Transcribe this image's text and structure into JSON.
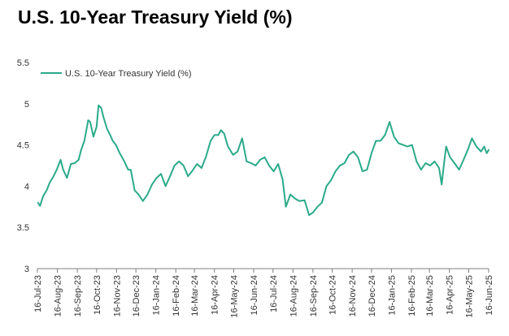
{
  "title": "U.S. 10-Year Treasury Yield (%)",
  "colors": {
    "series": "#2aaa8a",
    "axis": "#7f7f7f",
    "text": "#333333"
  },
  "chart_data": {
    "type": "line",
    "title": "U.S. 10-Year Treasury Yield (%)",
    "xlabel": "",
    "ylabel": "",
    "ylim": [
      3,
      5.5
    ],
    "yticks": [
      3,
      3.5,
      4,
      4.5,
      5,
      5.5
    ],
    "ytick_labels": [
      "3",
      "3.5",
      "4",
      "4.5",
      "5",
      "5.5"
    ],
    "xlim": [
      "2023-07-16",
      "2025-06-16"
    ],
    "xticks": [
      "2023-07-16",
      "2023-08-16",
      "2023-09-16",
      "2023-10-16",
      "2023-11-16",
      "2023-12-16",
      "2024-01-16",
      "2024-02-16",
      "2024-03-16",
      "2024-04-16",
      "2024-05-16",
      "2024-06-16",
      "2024-07-16",
      "2024-08-16",
      "2024-09-16",
      "2024-10-16",
      "2024-11-16",
      "2024-12-16",
      "2025-01-16",
      "2025-02-16",
      "2025-03-16",
      "2025-04-16",
      "2025-05-16",
      "2025-06-16"
    ],
    "xtick_labels": [
      "16-Jul-23",
      "16-Aug-23",
      "16-Sep-23",
      "16-Oct-23",
      "16-Nov-23",
      "16-Dec-23",
      "16-Jan-24",
      "16-Feb-24",
      "16-Mar-24",
      "16-Apr-24",
      "16-May-24",
      "16-Jun-24",
      "16-Jul-24",
      "16-Aug-24",
      "16-Sep-24",
      "16-Oct-24",
      "16-Nov-24",
      "16-Dec-24",
      "16-Jan-25",
      "16-Feb-25",
      "16-Mar-25",
      "16-Apr-25",
      "16-May-25",
      "16-Jun-25"
    ],
    "grid": false,
    "legend": "top-left",
    "series": [
      {
        "name": "U.S. 10-Year Treasury Yield (%)",
        "color": "#2aaa8a",
        "x": [
          "2023-07-17",
          "2023-07-20",
          "2023-07-25",
          "2023-07-31",
          "2023-08-04",
          "2023-08-10",
          "2023-08-15",
          "2023-08-21",
          "2023-08-25",
          "2023-08-31",
          "2023-09-06",
          "2023-09-12",
          "2023-09-18",
          "2023-09-22",
          "2023-09-27",
          "2023-10-03",
          "2023-10-06",
          "2023-10-11",
          "2023-10-16",
          "2023-10-19",
          "2023-10-23",
          "2023-10-27",
          "2023-11-01",
          "2023-11-06",
          "2023-11-10",
          "2023-11-15",
          "2023-11-21",
          "2023-11-28",
          "2023-12-04",
          "2023-12-08",
          "2023-12-14",
          "2023-12-20",
          "2023-12-27",
          "2024-01-03",
          "2024-01-10",
          "2024-01-17",
          "2024-01-24",
          "2024-01-31",
          "2024-02-07",
          "2024-02-14",
          "2024-02-21",
          "2024-02-28",
          "2024-03-06",
          "2024-03-13",
          "2024-03-20",
          "2024-03-27",
          "2024-04-03",
          "2024-04-10",
          "2024-04-16",
          "2024-04-22",
          "2024-04-26",
          "2024-05-01",
          "2024-05-07",
          "2024-05-15",
          "2024-05-22",
          "2024-05-29",
          "2024-06-05",
          "2024-06-12",
          "2024-06-19",
          "2024-06-26",
          "2024-07-03",
          "2024-07-10",
          "2024-07-17",
          "2024-07-24",
          "2024-07-31",
          "2024-08-05",
          "2024-08-12",
          "2024-08-19",
          "2024-08-26",
          "2024-09-03",
          "2024-09-10",
          "2024-09-16",
          "2024-09-23",
          "2024-09-30",
          "2024-10-07",
          "2024-10-14",
          "2024-10-21",
          "2024-10-28",
          "2024-11-04",
          "2024-11-11",
          "2024-11-18",
          "2024-11-25",
          "2024-12-02",
          "2024-12-09",
          "2024-12-16",
          "2024-12-23",
          "2024-12-30",
          "2025-01-06",
          "2025-01-13",
          "2025-01-20",
          "2025-01-27",
          "2025-02-03",
          "2025-02-10",
          "2025-02-17",
          "2025-02-24",
          "2025-03-03",
          "2025-03-10",
          "2025-03-17",
          "2025-03-24",
          "2025-03-31",
          "2025-04-04",
          "2025-04-08",
          "2025-04-11",
          "2025-04-17",
          "2025-04-24",
          "2025-05-01",
          "2025-05-08",
          "2025-05-15",
          "2025-05-21",
          "2025-05-28",
          "2025-06-04",
          "2025-06-09",
          "2025-06-13",
          "2025-06-16"
        ],
        "values": [
          3.8,
          3.76,
          3.88,
          3.96,
          4.04,
          4.12,
          4.2,
          4.32,
          4.2,
          4.1,
          4.27,
          4.28,
          4.32,
          4.44,
          4.55,
          4.8,
          4.78,
          4.6,
          4.72,
          4.98,
          4.95,
          4.83,
          4.7,
          4.62,
          4.55,
          4.5,
          4.4,
          4.3,
          4.2,
          4.2,
          3.95,
          3.9,
          3.82,
          3.9,
          4.02,
          4.1,
          4.15,
          4.0,
          4.12,
          4.25,
          4.3,
          4.25,
          4.12,
          4.19,
          4.27,
          4.22,
          4.36,
          4.55,
          4.62,
          4.62,
          4.68,
          4.64,
          4.48,
          4.38,
          4.42,
          4.58,
          4.3,
          4.28,
          4.25,
          4.32,
          4.35,
          4.25,
          4.18,
          4.27,
          4.08,
          3.75,
          3.9,
          3.85,
          3.82,
          3.83,
          3.65,
          3.68,
          3.75,
          3.8,
          4.0,
          4.07,
          4.18,
          4.25,
          4.28,
          4.38,
          4.42,
          4.35,
          4.18,
          4.2,
          4.4,
          4.55,
          4.55,
          4.62,
          4.78,
          4.6,
          4.52,
          4.5,
          4.48,
          4.5,
          4.3,
          4.2,
          4.28,
          4.25,
          4.3,
          4.22,
          4.02,
          4.3,
          4.48,
          4.35,
          4.28,
          4.2,
          4.32,
          4.45,
          4.58,
          4.48,
          4.42,
          4.48,
          4.4,
          4.44
        ]
      }
    ]
  }
}
